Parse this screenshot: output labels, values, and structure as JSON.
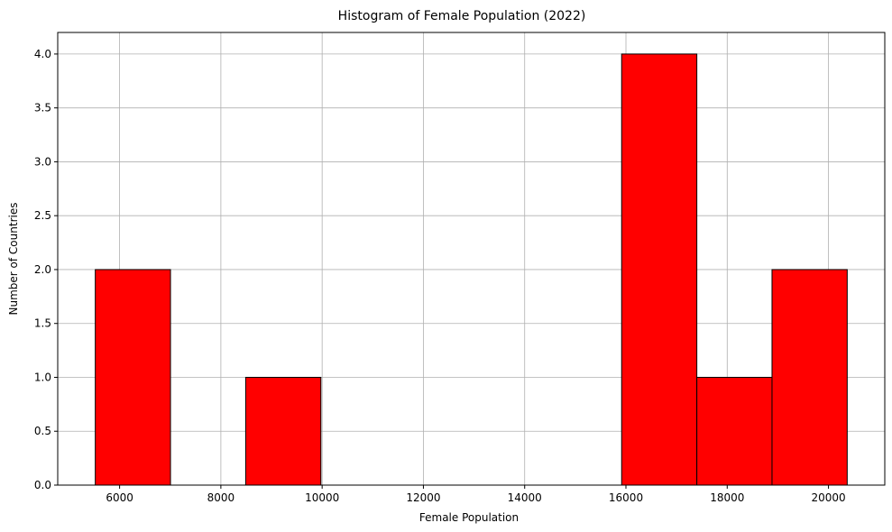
{
  "chart_data": {
    "type": "bar",
    "subtype": "histogram",
    "title": "Histogram of Female Population (2022)",
    "xlabel": "Female Population",
    "ylabel": "Number of Countries",
    "bin_edges": [
      5520,
      7005,
      8490,
      9975,
      11460,
      12945,
      14430,
      15915,
      17400,
      18885,
      20370
    ],
    "counts": [
      2,
      0,
      1,
      0,
      0,
      0,
      0,
      4,
      1,
      2
    ],
    "xlim": [
      4778,
      21112
    ],
    "ylim": [
      0,
      4.2
    ],
    "xticks": [
      6000,
      8000,
      10000,
      12000,
      14000,
      16000,
      18000,
      20000
    ],
    "yticks": [
      0.0,
      0.5,
      1.0,
      1.5,
      2.0,
      2.5,
      3.0,
      3.5,
      4.0
    ],
    "xtick_labels": [
      "6000",
      "8000",
      "10000",
      "12000",
      "14000",
      "16000",
      "18000",
      "20000"
    ],
    "ytick_labels": [
      "0.0",
      "0.5",
      "1.0",
      "1.5",
      "2.0",
      "2.5",
      "3.0",
      "3.5",
      "4.0"
    ],
    "grid": true,
    "bar_color": "#ff0000",
    "edge_color": "#000000",
    "grid_color": "#b0b0b0"
  }
}
